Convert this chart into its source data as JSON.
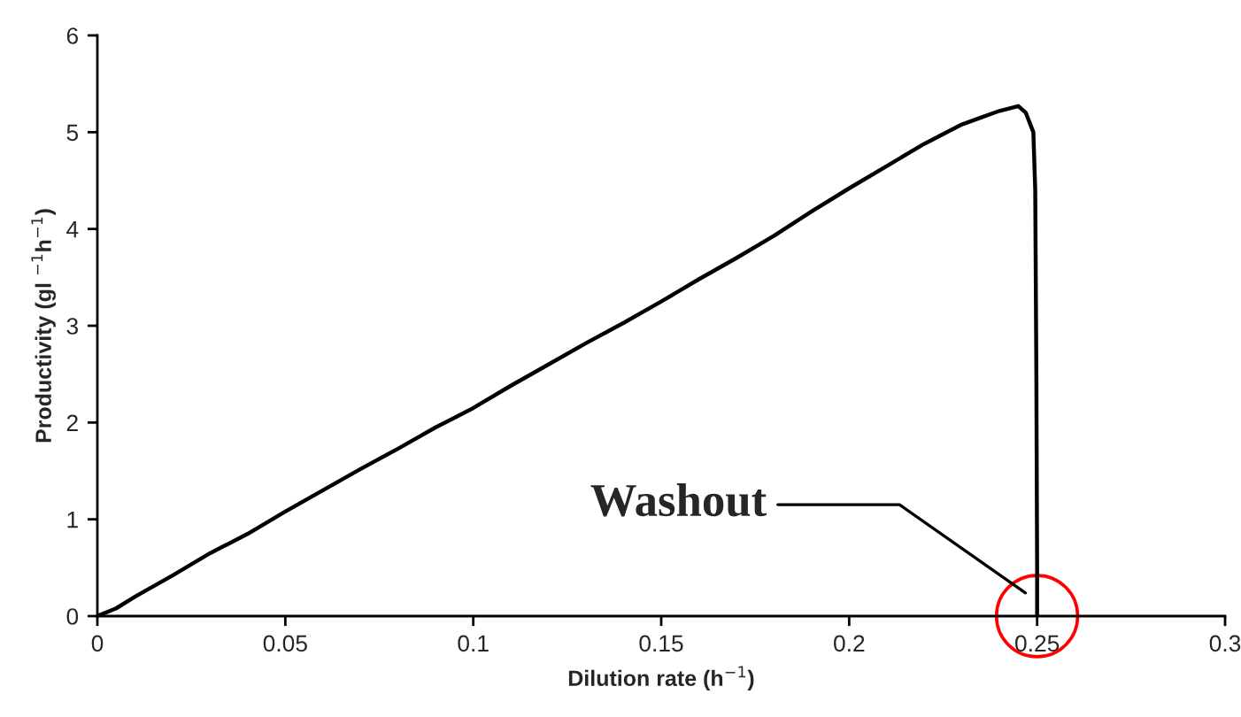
{
  "chart_data": {
    "type": "line",
    "xlabel": "Dilution rate (h$^{−1}$)",
    "ylabel": "Productivity (gl $^{−1}$h$^{−1}$)",
    "x": [
      0,
      0.005,
      0.01,
      0.02,
      0.03,
      0.04,
      0.05,
      0.06,
      0.07,
      0.08,
      0.09,
      0.1,
      0.11,
      0.12,
      0.13,
      0.14,
      0.15,
      0.16,
      0.17,
      0.18,
      0.19,
      0.2,
      0.21,
      0.22,
      0.23,
      0.235,
      0.24,
      0.245,
      0.247,
      0.249,
      0.2495,
      0.2498,
      0.25,
      0.25
    ],
    "series": [
      {
        "color": "#000000",
        "values": [
          0,
          0.08,
          0.2,
          0.42,
          0.65,
          0.85,
          1.08,
          1.3,
          1.52,
          1.73,
          1.95,
          2.15,
          2.38,
          2.6,
          2.82,
          3.03,
          3.25,
          3.48,
          3.7,
          3.93,
          4.18,
          4.42,
          4.65,
          4.88,
          5.08,
          5.15,
          5.22,
          5.27,
          5.2,
          5.0,
          4.4,
          2.5,
          0.5,
          0
        ]
      }
    ],
    "xlim": [
      0,
      0.3
    ],
    "ylim": [
      0,
      6
    ],
    "xticks": [
      0,
      0.05,
      0.1,
      0.15,
      0.2,
      0.25,
      0.3
    ],
    "yticks": [
      0,
      1,
      2,
      3,
      4,
      5,
      6
    ],
    "grid": false,
    "legend": false,
    "marker": "none",
    "line_style": "solid",
    "annotations": [
      "Washout"
    ]
  }
}
